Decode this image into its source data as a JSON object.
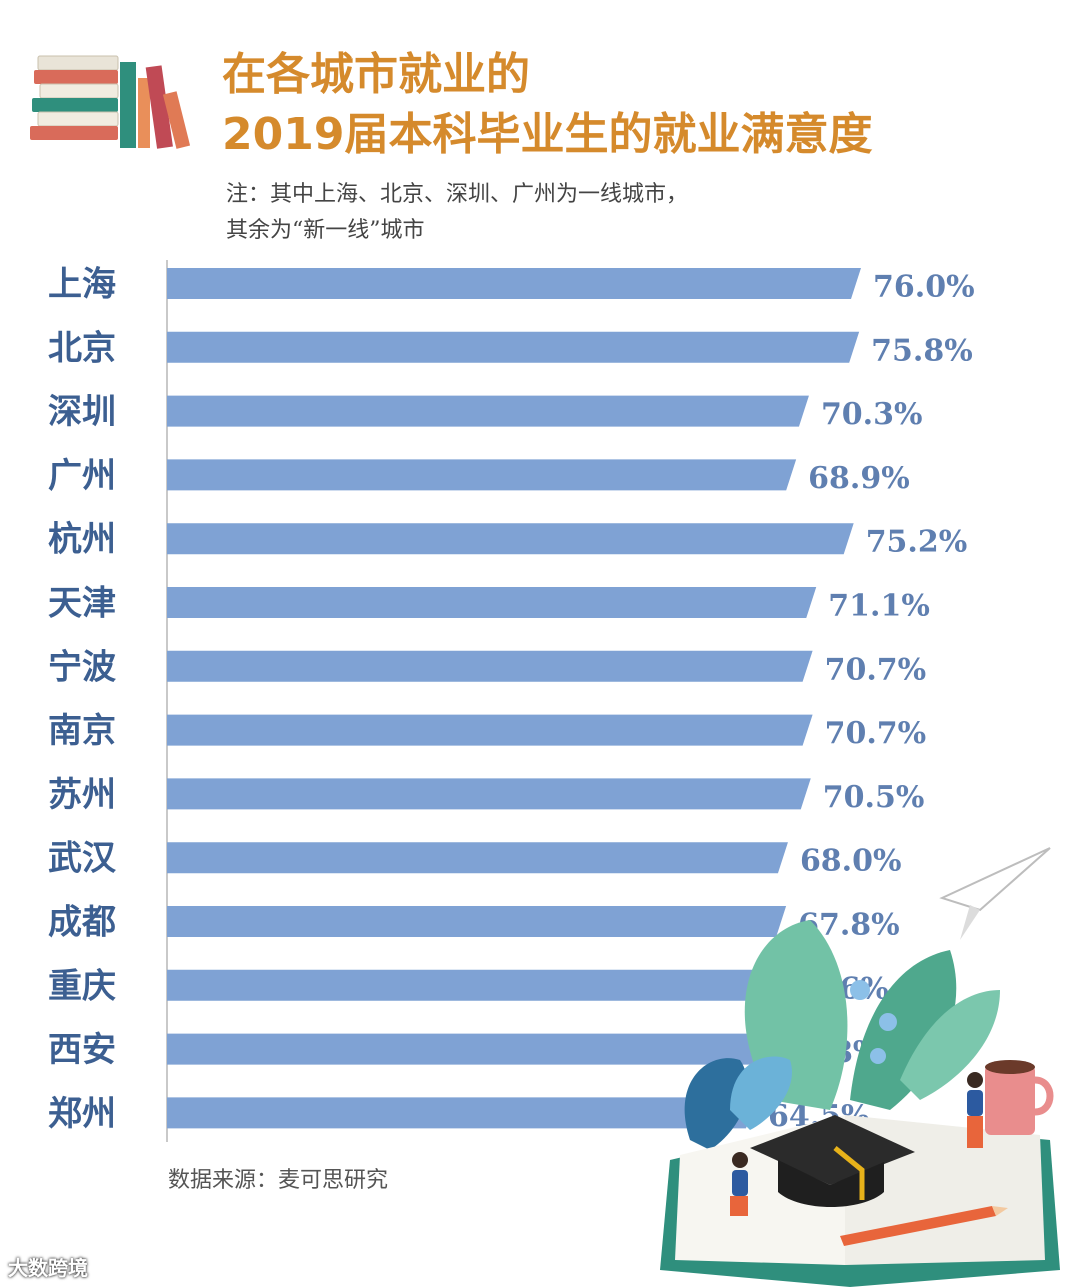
{
  "header": {
    "title_line1": "在各城市就业的",
    "title_line2": "2019届本科毕业生的就业满意度",
    "note_line1": "注：其中上海、北京、深圳、广州为一线城市，",
    "note_line2": "其余为“新一线”城市"
  },
  "footer": {
    "source": "数据来源：麦可思研究",
    "watermark": "大数跨境"
  },
  "colors": {
    "bar": "#7fa2d4",
    "value_label": "#5f7fb0",
    "category_label": "#3c5f91",
    "title": "#d58a2c"
  },
  "chart_data": {
    "type": "bar",
    "orientation": "horizontal",
    "title": "在各城市就业的2019届本科毕业生的就业满意度",
    "xlabel": "",
    "ylabel": "",
    "xlim": [
      0,
      76
    ],
    "grid": false,
    "categories": [
      "上海",
      "北京",
      "深圳",
      "广州",
      "杭州",
      "天津",
      "宁波",
      "南京",
      "苏州",
      "武汉",
      "成都",
      "重庆",
      "西安",
      "郑州"
    ],
    "values": [
      76.0,
      75.8,
      70.3,
      68.9,
      75.2,
      71.1,
      70.7,
      70.7,
      70.5,
      68.0,
      67.8,
      66.6,
      65.8,
      64.5
    ],
    "value_labels": [
      "76.0%",
      "75.8%",
      "70.3%",
      "68.9%",
      "75.2%",
      "71.1%",
      "70.7%",
      "70.7%",
      "70.5%",
      "68.0%",
      "67.8%",
      "66.6%",
      "65.8%",
      "64.5%"
    ]
  }
}
